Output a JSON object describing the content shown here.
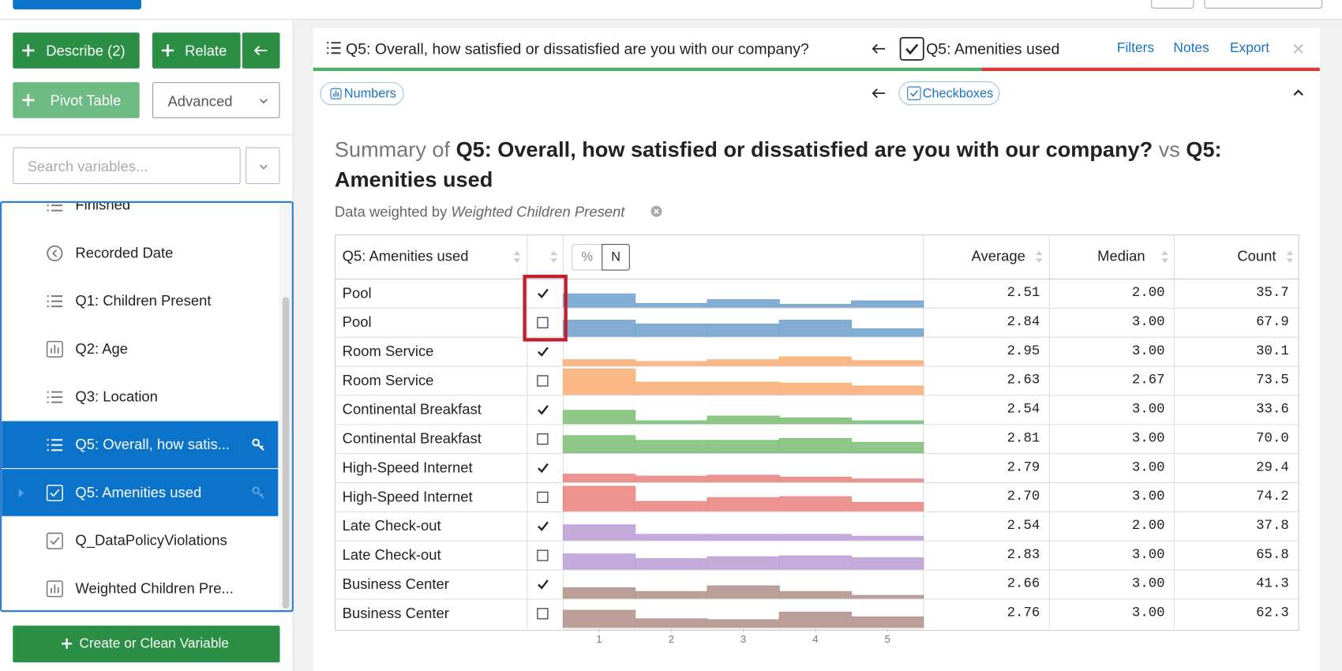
{
  "sidebar": {
    "describe_button": "Describe (2)",
    "relate_button": "Relate",
    "pivot_button": "Pivot Table",
    "advanced_select": "Advanced",
    "search_placeholder": "Search variables...",
    "variables": [
      {
        "label": "Finished",
        "icon": "list",
        "selected": false
      },
      {
        "label": "Recorded Date",
        "icon": "clock",
        "selected": false
      },
      {
        "label": "Q1: Children Present",
        "icon": "list",
        "selected": false
      },
      {
        "label": "Q2: Age",
        "icon": "bars",
        "selected": false
      },
      {
        "label": "Q3: Location",
        "icon": "list",
        "selected": false
      },
      {
        "label": "Q5: Overall, how satis...",
        "icon": "list",
        "selected": true
      },
      {
        "label": "Q5: Amenities used",
        "icon": "checkbox",
        "selected": true,
        "expandable": true
      },
      {
        "label": "Q_DataPolicyViolations",
        "icon": "checkbox",
        "selected": false
      },
      {
        "label": "Weighted Children Pre...",
        "icon": "bars",
        "selected": false
      }
    ],
    "create_button": "Create or Clean Variable"
  },
  "panel": {
    "title": "Q5: Overall, how satisfied or dissatisfied are you with our company?",
    "compare_to": "Q5: Amenities used",
    "actions": [
      "Filters",
      "Notes",
      "Export"
    ],
    "left_type": "Numbers",
    "right_type": "Checkboxes",
    "summary": {
      "prefix": "Summary of",
      "subject": "Q5: Overall, how satisfied or dissatisfied are you with our company?",
      "vs": "vs",
      "object": "Q5: Amenities used"
    },
    "weighted": {
      "prefix": "Data weighted by",
      "variable": "Weighted Children Present"
    },
    "table": {
      "label_header": "Q5: Amenities used",
      "toggle": [
        "%",
        "N"
      ],
      "stat_headers": [
        "Average",
        "Median",
        "Count"
      ],
      "rows": [
        {
          "label": "Pool",
          "checked": true,
          "color": "#7aa6d0",
          "histogram": [
            14,
            4,
            8,
            3,
            6.7
          ],
          "stats": [
            "2.51",
            "2.00",
            "35.7"
          ]
        },
        {
          "label": "Pool",
          "checked": false,
          "color": "#7aa6d0",
          "histogram": [
            17,
            13,
            13,
            17,
            8
          ],
          "stats": [
            "2.84",
            "3.00",
            "67.9"
          ]
        },
        {
          "label": "Room Service",
          "checked": true,
          "color": "#f9b27c",
          "histogram": [
            6,
            4,
            6,
            9,
            5
          ],
          "stats": [
            "2.95",
            "3.00",
            "30.1"
          ]
        },
        {
          "label": "Room Service",
          "checked": false,
          "color": "#f9b27c",
          "histogram": [
            27,
            13,
            13,
            12,
            9
          ],
          "stats": [
            "2.63",
            "2.67",
            "73.5"
          ]
        },
        {
          "label": "Continental Breakfast",
          "checked": true,
          "color": "#86c27e",
          "histogram": [
            14,
            3,
            8,
            6,
            3
          ],
          "stats": [
            "2.54",
            "3.00",
            "33.6"
          ]
        },
        {
          "label": "Continental Breakfast",
          "checked": false,
          "color": "#86c27e",
          "histogram": [
            18,
            13,
            13,
            15,
            11
          ],
          "stats": [
            "2.81",
            "3.00",
            "70.0"
          ]
        },
        {
          "label": "High-Speed Internet",
          "checked": true,
          "color": "#ec8a87",
          "histogram": [
            8,
            6,
            7,
            5,
            3
          ],
          "stats": [
            "2.79",
            "3.00",
            "29.4"
          ]
        },
        {
          "label": "High-Speed Internet",
          "checked": false,
          "color": "#ec8a87",
          "histogram": [
            26,
            10,
            14,
            15,
            9
          ],
          "stats": [
            "2.70",
            "3.00",
            "74.2"
          ]
        },
        {
          "label": "Late Check-out",
          "checked": true,
          "color": "#c0a3d9",
          "histogram": [
            16,
            6,
            6,
            6,
            4
          ],
          "stats": [
            "2.54",
            "2.00",
            "37.8"
          ]
        },
        {
          "label": "Late Check-out",
          "checked": false,
          "color": "#c0a3d9",
          "histogram": [
            16,
            11,
            13,
            14,
            12
          ],
          "stats": [
            "2.83",
            "3.00",
            "65.8"
          ]
        },
        {
          "label": "Business Center",
          "checked": true,
          "color": "#b69791",
          "histogram": [
            11,
            7,
            13,
            7,
            3
          ],
          "stats": [
            "2.66",
            "3.00",
            "41.3"
          ]
        },
        {
          "label": "Business Center",
          "checked": false,
          "color": "#b69791",
          "histogram": [
            18,
            9,
            8,
            16,
            11
          ],
          "stats": [
            "2.76",
            "3.00",
            "62.3"
          ]
        }
      ],
      "histogram_axis": [
        1,
        2,
        3,
        4,
        5
      ]
    }
  }
}
